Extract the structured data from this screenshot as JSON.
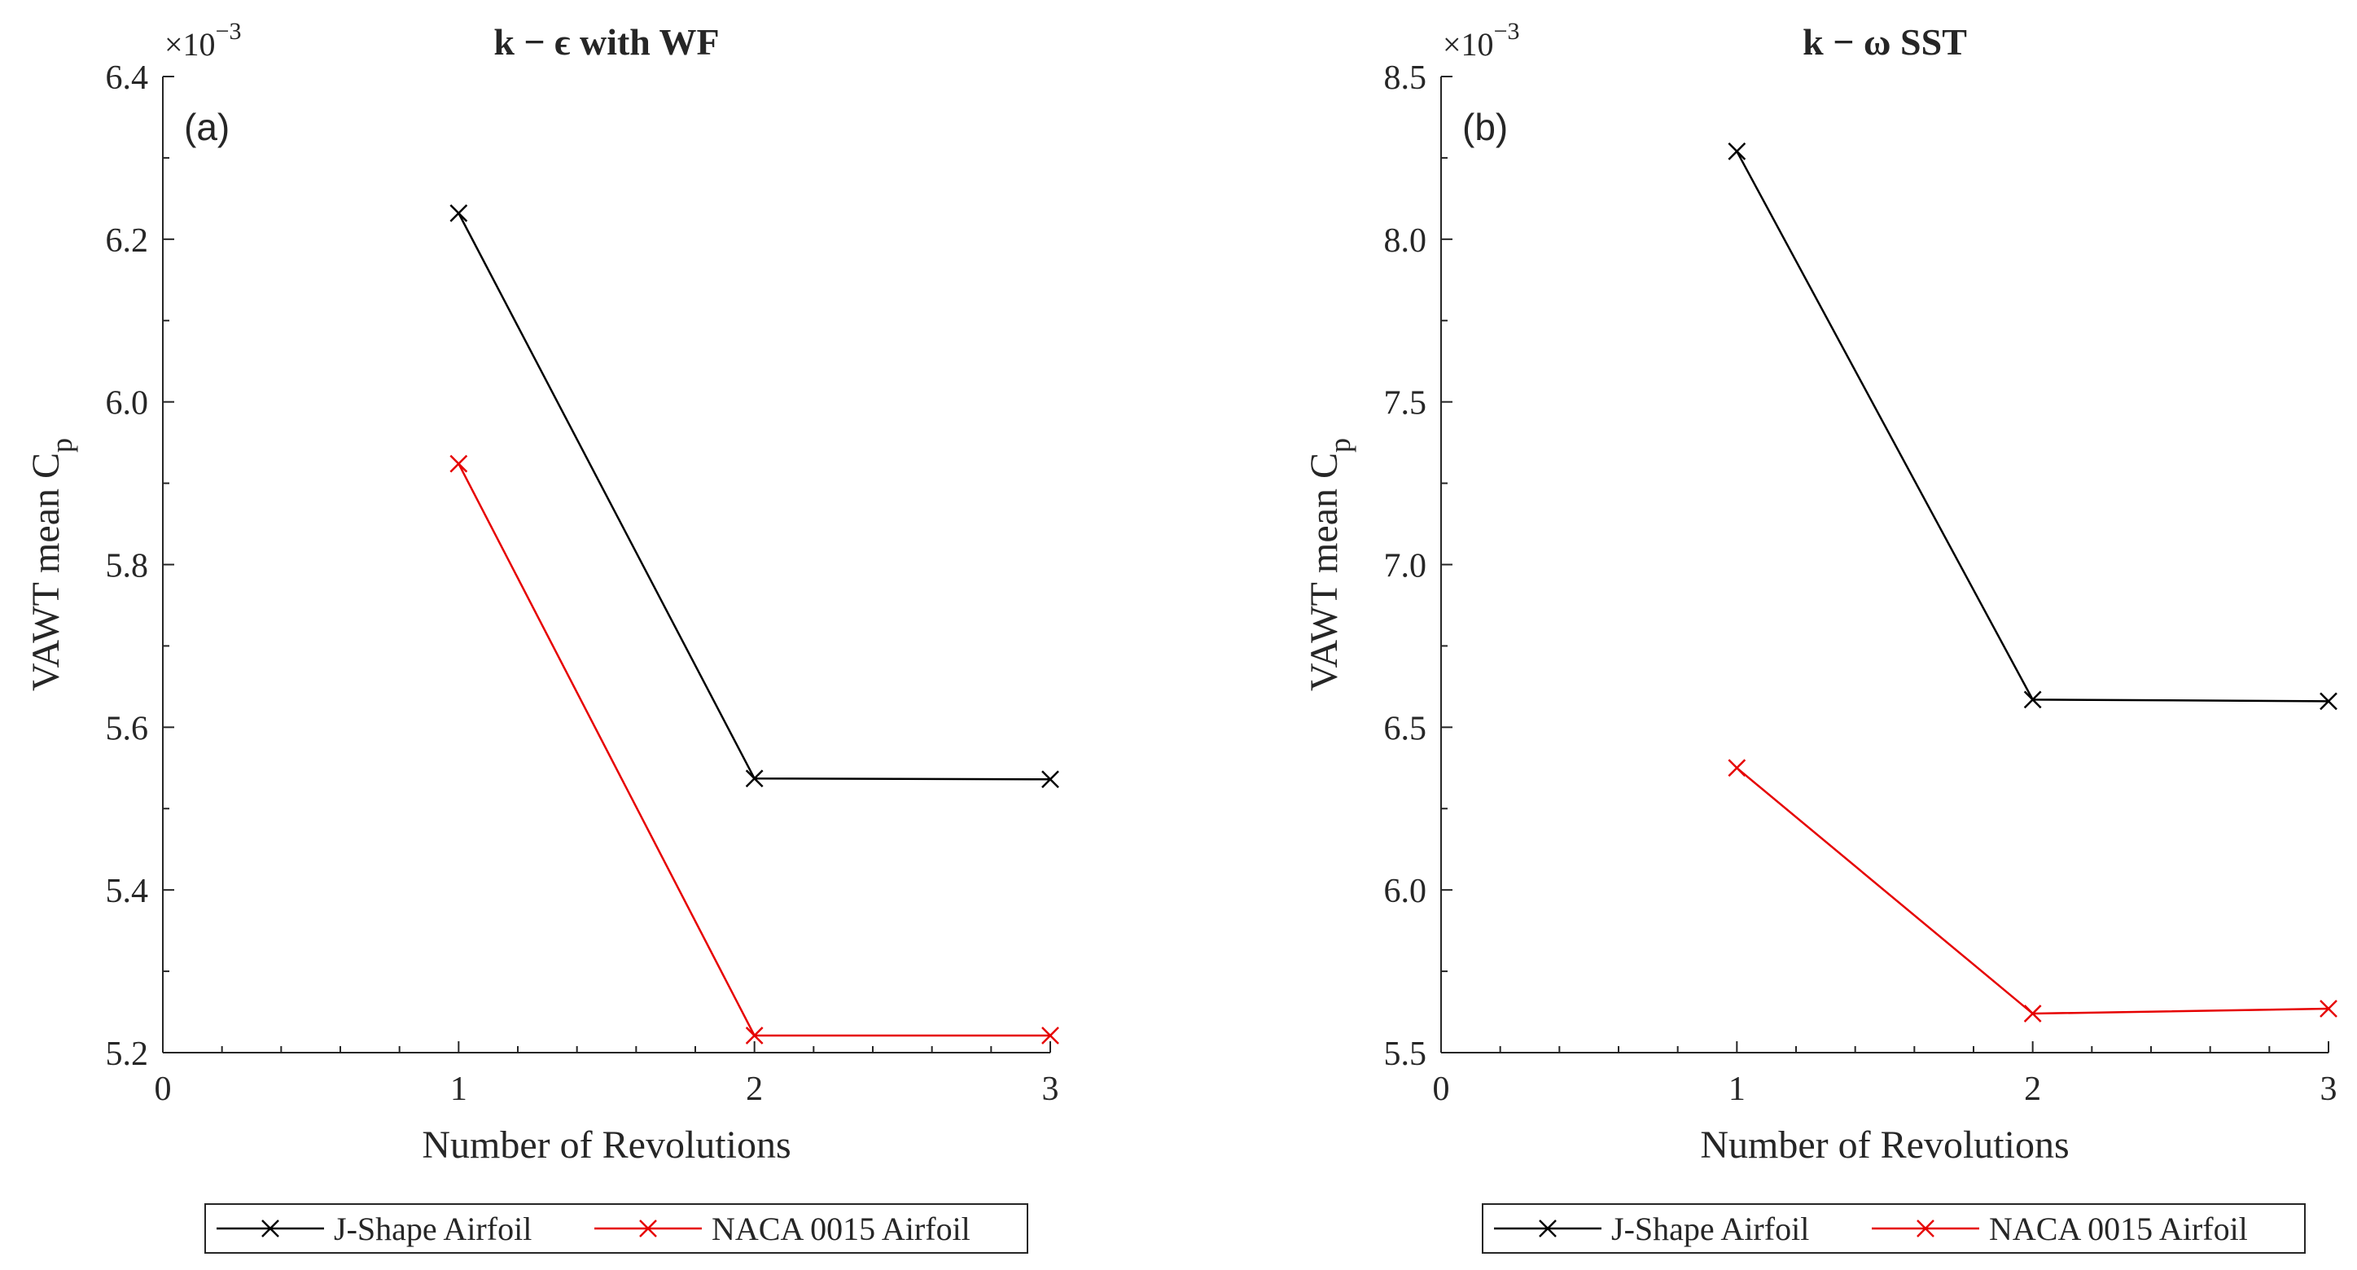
{
  "chart_data": [
    {
      "type": "line",
      "panel_label": "(a)",
      "title": "k − ϵ with WF",
      "xlabel": "Number of Revolutions",
      "ylabel": "VAWT mean C",
      "ylabel_sub": "p",
      "y_multiplier": "×10",
      "y_multiplier_exp": "−3",
      "xlim": [
        0,
        3
      ],
      "ylim": [
        5.2,
        6.4
      ],
      "xticks": [
        0,
        1,
        2,
        3
      ],
      "xtick_labels": [
        "0",
        "1",
        "2",
        "3"
      ],
      "yticks": [
        5.2,
        5.4,
        5.6,
        5.8,
        6.0,
        6.2,
        6.4
      ],
      "ytick_labels": [
        "5.2",
        "5.4",
        "5.6",
        "5.8",
        "6.0",
        "6.2",
        "6.4"
      ],
      "x": [
        1,
        2,
        3
      ],
      "series": [
        {
          "name": "J-Shape Airfoil",
          "color": "#000000",
          "marker": "x",
          "values": [
            6.232,
            5.537,
            5.536
          ]
        },
        {
          "name": "NACA 0015 Airfoil",
          "color": "#e60000",
          "marker": "x",
          "values": [
            5.924,
            5.221,
            5.221
          ]
        }
      ],
      "legend": "bottom-outside"
    },
    {
      "type": "line",
      "panel_label": "(b)",
      "title": "k − ω SST",
      "xlabel": "Number of Revolutions",
      "ylabel": "VAWT mean C",
      "ylabel_sub": "p",
      "y_multiplier": "×10",
      "y_multiplier_exp": "−3",
      "xlim": [
        0,
        3
      ],
      "ylim": [
        5.5,
        8.5
      ],
      "xticks": [
        0,
        1,
        2,
        3
      ],
      "xtick_labels": [
        "0",
        "1",
        "2",
        "3"
      ],
      "yticks": [
        5.5,
        6.0,
        6.5,
        7.0,
        7.5,
        8.0,
        8.5
      ],
      "ytick_labels": [
        "5.5",
        "6.0",
        "6.5",
        "7.0",
        "7.5",
        "8.0",
        "8.5"
      ],
      "x": [
        1,
        2,
        3
      ],
      "series": [
        {
          "name": "J-Shape Airfoil",
          "color": "#000000",
          "marker": "x",
          "values": [
            8.27,
            6.585,
            6.58
          ]
        },
        {
          "name": "NACA 0015 Airfoil",
          "color": "#e60000",
          "marker": "x",
          "values": [
            6.375,
            5.62,
            5.635
          ]
        }
      ],
      "legend": "bottom-outside"
    }
  ]
}
